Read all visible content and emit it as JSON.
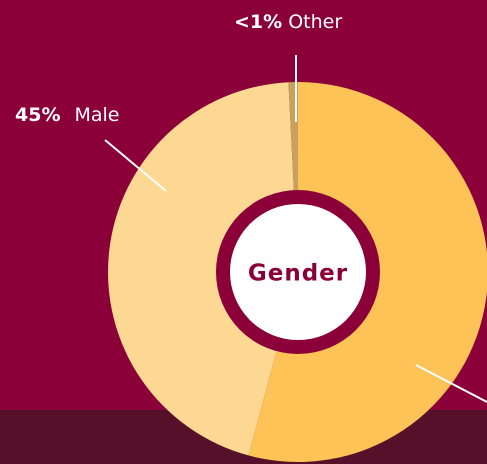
{
  "chart_data": {
    "type": "donut",
    "title": "Gender",
    "categories": [
      null,
      "Male",
      "Other"
    ],
    "values": [
      54.2,
      45,
      0.8
    ],
    "value_labels": [
      null,
      "45%",
      "<1%"
    ],
    "colors": [
      "#fec356",
      "#fdd893",
      "#c9a05e"
    ]
  }
}
